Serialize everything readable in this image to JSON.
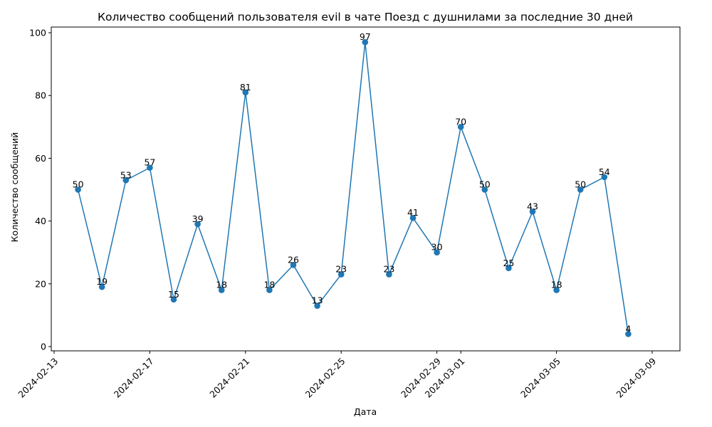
{
  "chart_data": {
    "type": "line",
    "title": "Количество сообщений пользователя evil в чате Поезд с душнилами за последние 30 дней",
    "xlabel": "Дата",
    "ylabel": "Количество сообщений",
    "x": [
      "2024-02-14",
      "2024-02-15",
      "2024-02-16",
      "2024-02-17",
      "2024-02-18",
      "2024-02-19",
      "2024-02-20",
      "2024-02-21",
      "2024-02-22",
      "2024-02-23",
      "2024-02-24",
      "2024-02-25",
      "2024-02-26",
      "2024-02-27",
      "2024-02-28",
      "2024-02-29",
      "2024-03-01",
      "2024-03-02",
      "2024-03-03",
      "2024-03-04",
      "2024-03-05",
      "2024-03-06",
      "2024-03-07",
      "2024-03-08"
    ],
    "series": [
      {
        "values": [
          50,
          19,
          53,
          57,
          15,
          39,
          18,
          81,
          18,
          26,
          13,
          23,
          97,
          23,
          41,
          30,
          70,
          50,
          25,
          43,
          18,
          50,
          54,
          4
        ]
      }
    ],
    "xlim": [
      "2024-02-13",
      "2024-03-09"
    ],
    "ylim": [
      0,
      100
    ],
    "x_ticks": [
      "2024-02-13",
      "2024-02-17",
      "2024-02-21",
      "2024-02-25",
      "2024-02-29",
      "2024-03-01",
      "2024-03-05",
      "2024-03-09"
    ],
    "y_ticks": [
      0,
      20,
      40,
      60,
      80,
      100
    ],
    "grid": false,
    "markers": true,
    "data_labels": true,
    "line_color": "#1f77b4"
  }
}
